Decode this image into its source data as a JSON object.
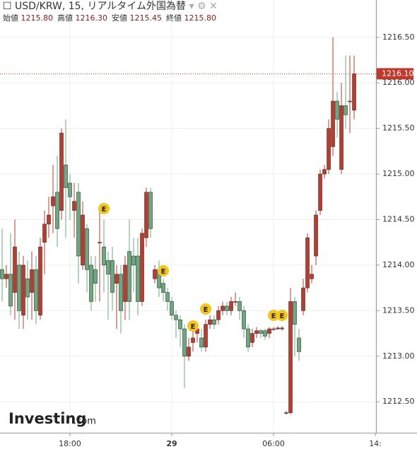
{
  "chart_data": {
    "type": "candlestick",
    "title": "USD/KRW, 15, リアルタイム外国為替",
    "ohlc_summary": [
      {
        "label": "始値",
        "value": "1215.80"
      },
      {
        "label": "高値",
        "value": "1216.30"
      },
      {
        "label": "安値",
        "value": "1215.45"
      },
      {
        "label": "終値",
        "value": "1215.80"
      }
    ],
    "watermark": {
      "brand": "Investing",
      "suffix": ".com"
    },
    "x": [
      14,
      14.25,
      14.5,
      14.75,
      15,
      15.25,
      15.5,
      15.75,
      16,
      16.25,
      16.5,
      16.75,
      17,
      17.25,
      17.5,
      17.75,
      18,
      18.25,
      18.5,
      18.75,
      19,
      19.25,
      19.5,
      19.75,
      20,
      20.25,
      20.5,
      20.75,
      21,
      21.25,
      21.5,
      21.75,
      22,
      22.25,
      22.5,
      22.75,
      23,
      23.25,
      23.5,
      23.75,
      24,
      24.25,
      24.5,
      24.75,
      25,
      25.25,
      25.5,
      25.75,
      26,
      26.25,
      26.5,
      26.75,
      27,
      27.25,
      27.5,
      27.75,
      28,
      28.25,
      28.5,
      28.75,
      29,
      29.25,
      29.5,
      29.75,
      30,
      30.25,
      30.5,
      30.75,
      31,
      31.25,
      31.5,
      31.75,
      32,
      32.25,
      32.5,
      32.75,
      33,
      33.25,
      33.5,
      33.75,
      34,
      34.25,
      34.5,
      34.75
    ],
    "open": [
      1213.95,
      1213.85,
      1213.9,
      1213.7,
      1214.0,
      1213.45,
      1213.85,
      1213.7,
      1213.95,
      1213.45,
      1214.25,
      1214.45,
      1214.65,
      1214.8,
      1214.6,
      1215.1,
      1214.9,
      1214.6,
      1214.8,
      1214.0,
      1214.4,
      1214.0,
      1213.95,
      1214.25,
      1214.2,
      1214.05,
      1214.05,
      1213.8,
      1213.9,
      1213.6,
      1214.15,
      1214.1,
      1214.1,
      1213.6,
      1214.3,
      1214.8,
      1213.85,
      1213.95,
      1213.8,
      1213.7,
      1213.6,
      1213.45,
      1213.4,
      1213.3,
      1213.0,
      1213.15,
      1213.25,
      1213.2,
      1213.1,
      1213.35,
      1213.4,
      1213.4,
      1213.5,
      1213.55,
      1213.5,
      1213.6,
      1213.6,
      1213.5,
      1213.3,
      1213.15,
      1213.25,
      1213.28,
      1213.28,
      1213.25,
      1213.3,
      1213.3,
      1213.3,
      1212.38,
      1212.38,
      1213.6,
      1213.2,
      1213.5,
      1213.75,
      1213.85,
      1214.1,
      1214.6,
      1215.0,
      1215.05,
      1215.3,
      1215.8,
      1215.05,
      1215.75,
      1215.8,
      1215.7
    ],
    "high": [
      1214.4,
      1214.0,
      1214.35,
      1214.5,
      1214.15,
      1214.1,
      1214.05,
      1214.15,
      1214.1,
      1214.3,
      1214.6,
      1214.75,
      1215.1,
      1215.2,
      1215.5,
      1215.6,
      1215.0,
      1214.9,
      1214.9,
      1214.7,
      1214.45,
      1214.1,
      1214.1,
      1214.6,
      1214.5,
      1214.15,
      1214.2,
      1214.0,
      1214.0,
      1214.1,
      1214.5,
      1214.3,
      1214.3,
      1214.4,
      1214.85,
      1214.85,
      1214.0,
      1214.05,
      1213.85,
      1213.75,
      1213.65,
      1213.5,
      1213.45,
      1213.35,
      1213.2,
      1213.3,
      1213.35,
      1213.3,
      1213.4,
      1213.45,
      1213.45,
      1213.55,
      1213.6,
      1213.6,
      1213.65,
      1213.7,
      1213.65,
      1213.55,
      1213.35,
      1213.3,
      1213.32,
      1213.3,
      1213.3,
      1213.32,
      1213.32,
      1213.33,
      1213.33,
      1212.4,
      1213.75,
      1213.65,
      1213.3,
      1213.85,
      1214.35,
      1214.0,
      1214.6,
      1215.05,
      1215.1,
      1215.6,
      1216.5,
      1215.9,
      1216.0,
      1216.3,
      1216.3,
      1216.3
    ],
    "low": [
      1213.6,
      1213.75,
      1213.45,
      1213.4,
      1213.3,
      1213.3,
      1213.4,
      1213.4,
      1213.35,
      1213.4,
      1213.9,
      1214.3,
      1214.35,
      1214.2,
      1214.5,
      1214.3,
      1214.5,
      1214.3,
      1213.8,
      1213.95,
      1213.7,
      1213.5,
      1213.6,
      1213.6,
      1213.7,
      1213.4,
      1213.5,
      1213.3,
      1213.25,
      1213.4,
      1213.4,
      1213.7,
      1213.45,
      1213.55,
      1214.2,
      1214.3,
      1213.8,
      1213.65,
      1213.6,
      1213.5,
      1213.4,
      1213.2,
      1213.1,
      1212.65,
      1212.95,
      1213.05,
      1213.15,
      1213.05,
      1213.05,
      1213.3,
      1213.3,
      1213.35,
      1213.45,
      1213.45,
      1213.45,
      1213.55,
      1213.4,
      1213.2,
      1213.05,
      1213.1,
      1213.2,
      1213.2,
      1213.18,
      1213.2,
      1213.28,
      1213.29,
      1213.28,
      1212.36,
      1212.36,
      1213.0,
      1212.95,
      1213.45,
      1213.7,
      1213.8,
      1214.0,
      1214.55,
      1214.95,
      1215.0,
      1215.2,
      1215.4,
      1215.0,
      1215.5,
      1215.45,
      1215.6
    ],
    "close": [
      1213.85,
      1213.9,
      1213.55,
      1214.2,
      1213.5,
      1214.0,
      1213.65,
      1213.95,
      1213.5,
      1214.2,
      1214.45,
      1214.55,
      1214.75,
      1214.4,
      1215.45,
      1214.85,
      1214.75,
      1214.7,
      1214.1,
      1214.55,
      1213.95,
      1213.6,
      1213.8,
      1214.25,
      1214.0,
      1213.9,
      1213.7,
      1213.9,
      1213.5,
      1214.0,
      1213.6,
      1214.0,
      1213.6,
      1214.35,
      1214.8,
      1214.4,
      1213.95,
      1213.75,
      1213.7,
      1213.6,
      1213.45,
      1213.4,
      1213.3,
      1213.0,
      1213.1,
      1213.2,
      1213.3,
      1213.1,
      1213.35,
      1213.4,
      1213.35,
      1213.5,
      1213.55,
      1213.5,
      1213.6,
      1213.6,
      1213.5,
      1213.3,
      1213.1,
      1213.25,
      1213.28,
      1213.25,
      1213.22,
      1213.3,
      1213.3,
      1213.31,
      1213.31,
      1212.38,
      1213.6,
      1213.35,
      1213.05,
      1213.75,
      1214.3,
      1213.9,
      1214.55,
      1215.0,
      1215.05,
      1215.5,
      1215.8,
      1215.6,
      1215.75,
      1215.65,
      1215.8,
      1216.1
    ],
    "up_color": "#c0392b",
    "down_color": "#6aaa7e",
    "events": [
      {
        "x": 20,
        "label": "E"
      },
      {
        "x": 23.5,
        "label": "E"
      },
      {
        "x": 25.25,
        "label": "E"
      },
      {
        "x": 26,
        "label": "E"
      },
      {
        "x": 30,
        "label": "E"
      },
      {
        "x": 30.5,
        "label": "E"
      }
    ],
    "last_price": {
      "value": 1216.1,
      "label": "1216.10"
    },
    "xlim": [
      13.875,
      36.04
    ],
    "xticks": [
      {
        "value": 18,
        "label": "18:00"
      },
      {
        "value": 24,
        "label": "29"
      },
      {
        "value": 30,
        "label": "06:00"
      },
      {
        "value": 36,
        "label": "14:"
      }
    ],
    "ylim": [
      1212.16,
      1216.91
    ],
    "yticks": [
      {
        "value": 1212.5,
        "label": "1212.50"
      },
      {
        "value": 1213,
        "label": "1213.00"
      },
      {
        "value": 1213.5,
        "label": "1213.50"
      },
      {
        "value": 1214,
        "label": "1214.00"
      },
      {
        "value": 1214.5,
        "label": "1214.50"
      },
      {
        "value": 1215,
        "label": "1215.00"
      },
      {
        "value": 1215.5,
        "label": "1215.50"
      },
      {
        "value": 1216,
        "label": "1216.00"
      },
      {
        "value": 1216.5,
        "label": "1216.50"
      }
    ],
    "grid": true
  }
}
